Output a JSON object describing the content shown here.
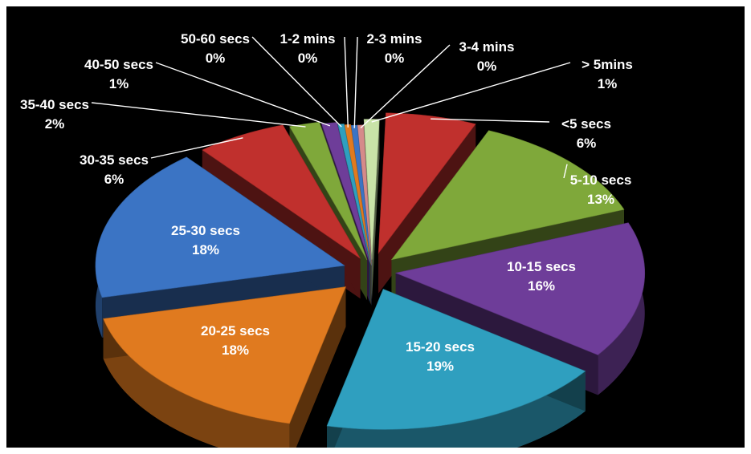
{
  "chart_data": {
    "type": "pie",
    "style": "3d-exploded",
    "title": "",
    "categories": [
      "<5 secs",
      "5-10 secs",
      "10-15 secs",
      "15-20 secs",
      "20-25 secs",
      "25-30 secs",
      "30-35 secs",
      "35-40 secs",
      "40-50 secs",
      "50-60 secs",
      "1-2 mins",
      "2-3 mins",
      "3-4 mins",
      "> 5mins"
    ],
    "values": [
      6,
      13,
      16,
      19,
      18,
      18,
      6,
      2,
      1,
      0,
      0,
      0,
      0,
      1
    ],
    "labels": [
      "6%",
      "13%",
      "16%",
      "19%",
      "18%",
      "18%",
      "6%",
      "2%",
      "1%",
      "0%",
      "0%",
      "0%",
      "0%",
      "1%"
    ],
    "colors": [
      "#c0302d",
      "#7fa83a",
      "#6e3d99",
      "#2f9fbf",
      "#e07a1f",
      "#3b74c4",
      "#c0302d",
      "#7fa83a",
      "#6e3d99",
      "#2f9fbf",
      "#e07a1f",
      "#3b74c4",
      "#d58a8a",
      "#c9e3a8"
    ],
    "legend": "none",
    "data_labels": "category-and-percent"
  }
}
